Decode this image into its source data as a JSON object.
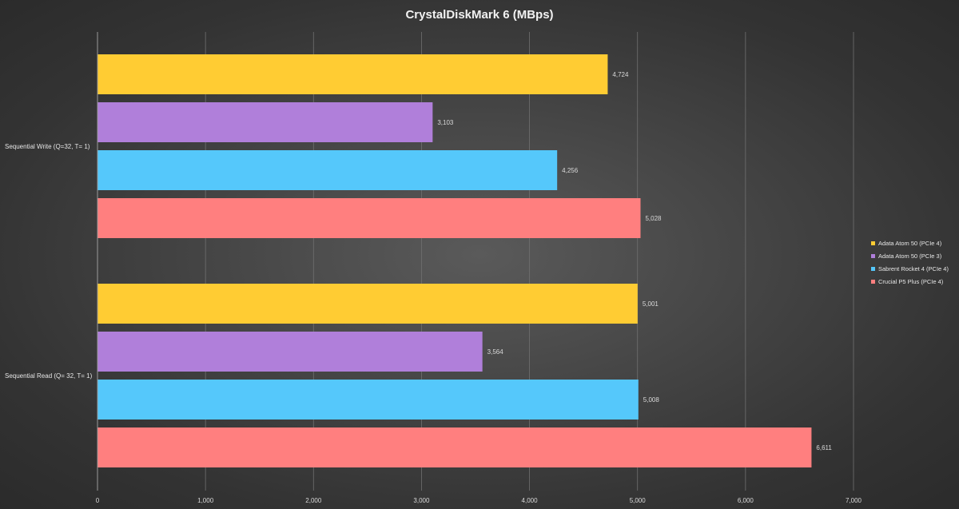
{
  "chart_data": {
    "type": "bar",
    "orientation": "horizontal",
    "title": "CrystalDiskMark  6 (MBps)",
    "categories": [
      "Sequential Write (Q=32, T= 1)",
      "Sequential Read (Q= 32, T= 1)"
    ],
    "series": [
      {
        "name": "Adata Atom 50 (PCIe 4)",
        "color": "#ffcc33",
        "values": [
          4724,
          5001
        ],
        "labels": [
          "4,724",
          "5,001"
        ]
      },
      {
        "name": "Adata Atom 50 (PCIe 3)",
        "color": "#b07fda",
        "values": [
          3103,
          3564
        ],
        "labels": [
          "3,103",
          "3,564"
        ]
      },
      {
        "name": "Sabrent Rocket 4 (PCIe 4)",
        "color": "#55c8fb",
        "values": [
          4256,
          5008
        ],
        "labels": [
          "4,256",
          "5,008"
        ]
      },
      {
        "name": "Crucial P5 Plus (PCIe 4)",
        "color": "#ff7f7f",
        "values": [
          5028,
          6611
        ],
        "labels": [
          "5,028",
          "6,611"
        ]
      }
    ],
    "xlim": [
      0,
      7000
    ],
    "xticks": [
      0,
      1000,
      2000,
      3000,
      4000,
      5000,
      6000,
      7000
    ],
    "xtick_labels": [
      "0",
      "1,000",
      "2,000",
      "3,000",
      "4,000",
      "5,000",
      "6,000",
      "7,000"
    ],
    "grid": true,
    "legend": "right"
  }
}
